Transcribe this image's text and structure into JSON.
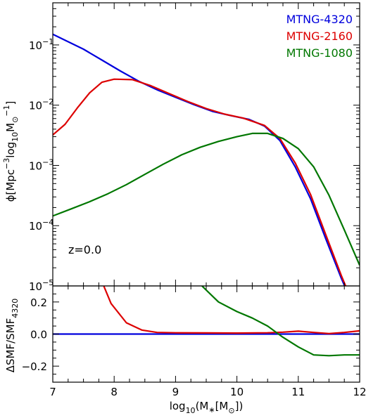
{
  "chart_data": [
    {
      "type": "line",
      "panel": "top",
      "ylabel_parts": [
        "ϕ[Mpc",
        "−3",
        "log",
        "10",
        "M",
        "⊙",
        "−1",
        "]"
      ],
      "yscale": "log",
      "xlim": [
        7,
        12
      ],
      "ylim": [
        1e-05,
        0.5
      ],
      "legend_position": "top-right",
      "yticks": [
        {
          "value": 1e-05,
          "base": "10",
          "exp": "−5"
        },
        {
          "value": 0.0001,
          "base": "10",
          "exp": "−4"
        },
        {
          "value": 0.001,
          "base": "10",
          "exp": "−3"
        },
        {
          "value": 0.01,
          "base": "10",
          "exp": "−2"
        },
        {
          "value": 0.1,
          "base": "10",
          "exp": "−1"
        }
      ],
      "annotation": "z=0.0",
      "series": [
        {
          "name": "MTNG-4320",
          "color": "#0000dd",
          "x": [
            7.0,
            7.2,
            7.5,
            7.8,
            8.1,
            8.4,
            8.7,
            9.0,
            9.3,
            9.6,
            9.9,
            10.2,
            10.45,
            10.7,
            10.95,
            11.2,
            11.45,
            11.7,
            11.8
          ],
          "y": [
            0.15,
            0.12,
            0.085,
            0.056,
            0.037,
            0.025,
            0.018,
            0.0135,
            0.0102,
            0.0079,
            0.0067,
            0.0058,
            0.0045,
            0.0026,
            0.00095,
            0.00028,
            6e-05,
            1.35e-05,
            7.8e-06
          ]
        },
        {
          "name": "MTNG-2160",
          "color": "#dd0000",
          "x": [
            7.0,
            7.2,
            7.4,
            7.6,
            7.8,
            8.0,
            8.3,
            8.6,
            8.9,
            9.2,
            9.5,
            9.8,
            10.1,
            10.45,
            10.7,
            10.95,
            11.2,
            11.45,
            11.7,
            11.8
          ],
          "y": [
            0.0032,
            0.0048,
            0.009,
            0.016,
            0.024,
            0.027,
            0.0265,
            0.021,
            0.0155,
            0.0115,
            0.0088,
            0.0071,
            0.0061,
            0.0046,
            0.0028,
            0.0011,
            0.00033,
            7e-05,
            1.5e-05,
            8.5e-06
          ]
        },
        {
          "name": "MTNG-1080",
          "color": "#007700",
          "x": [
            7.0,
            7.3,
            7.6,
            7.9,
            8.2,
            8.5,
            8.8,
            9.1,
            9.4,
            9.7,
            10.0,
            10.25,
            10.5,
            10.75,
            11.0,
            11.25,
            11.5,
            11.75,
            12.0
          ],
          "y": [
            0.000145,
            0.00019,
            0.00025,
            0.00034,
            0.00048,
            0.00071,
            0.00105,
            0.0015,
            0.002,
            0.0025,
            0.003,
            0.0034,
            0.0034,
            0.0028,
            0.0019,
            0.00095,
            0.00032,
            8.5e-05,
            2.2e-05
          ]
        }
      ]
    },
    {
      "type": "line",
      "panel": "bottom",
      "ylabel_parts": [
        "ΔSMF/SMF",
        "4320"
      ],
      "xlabel_parts": [
        "log",
        "10",
        "(M",
        "∗",
        "[M",
        "⊙",
        "])"
      ],
      "xlim": [
        7,
        12
      ],
      "ylim": [
        -0.3,
        0.3
      ],
      "xticks": [
        "7",
        "8",
        "9",
        "10",
        "11",
        "12"
      ],
      "yticks": [
        "0.2",
        "0.0",
        "−0.2"
      ],
      "ytick_values": [
        0.2,
        0.0,
        -0.2
      ],
      "series": [
        {
          "name": "MTNG-4320",
          "color": "#0000dd",
          "x": [
            7.0,
            12.0
          ],
          "y": [
            0.0,
            0.0
          ]
        },
        {
          "name": "MTNG-2160",
          "color": "#dd0000",
          "x": [
            7.83,
            7.95,
            8.2,
            8.45,
            8.7,
            9.0,
            9.5,
            10.0,
            10.5,
            10.75,
            11.0,
            11.25,
            11.5,
            11.75,
            12.0
          ],
          "y": [
            0.3,
            0.19,
            0.07,
            0.025,
            0.01,
            0.008,
            0.007,
            0.006,
            0.008,
            0.012,
            0.018,
            0.01,
            0.003,
            0.01,
            0.02
          ]
        },
        {
          "name": "MTNG-1080",
          "color": "#007700",
          "x": [
            9.43,
            9.7,
            10.0,
            10.25,
            10.5,
            10.75,
            11.0,
            11.25,
            11.5,
            11.75,
            12.0
          ],
          "y": [
            0.3,
            0.2,
            0.14,
            0.1,
            0.05,
            -0.02,
            -0.08,
            -0.13,
            -0.135,
            -0.13,
            -0.13
          ]
        }
      ]
    }
  ]
}
